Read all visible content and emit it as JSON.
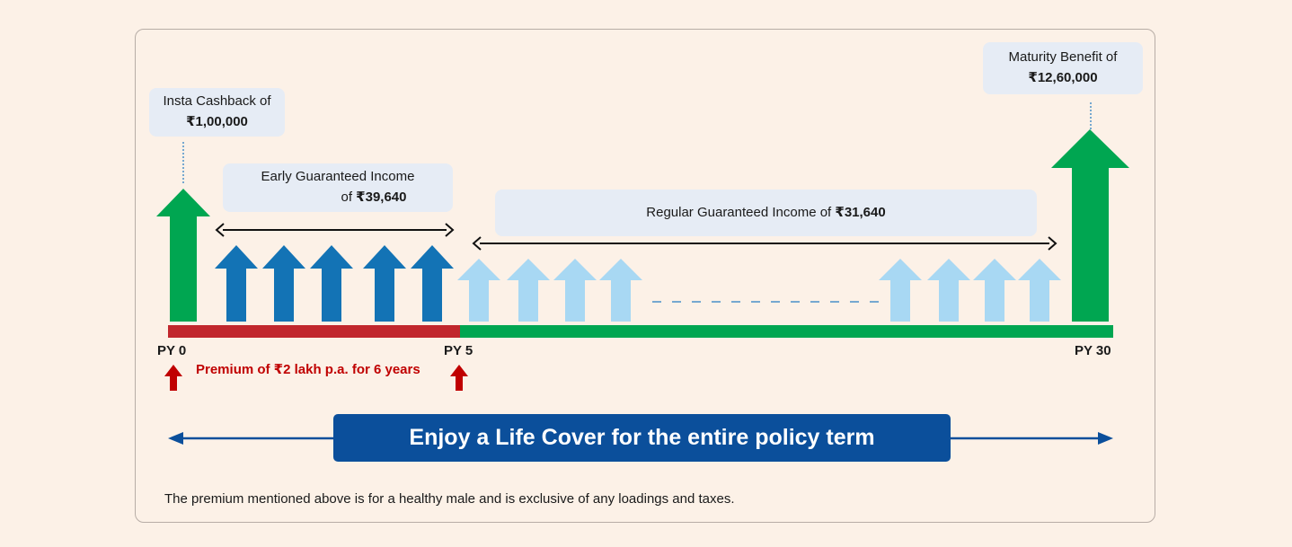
{
  "insta_cashback": {
    "line1": "Insta Cashback of",
    "amount": "₹1,00,000"
  },
  "early_income": {
    "line1": "Early Guaranteed Income",
    "line2_prefix": "of ",
    "amount": "₹39,640"
  },
  "regular_income": {
    "text": "Regular Guaranteed Income of ",
    "amount": "₹31,640"
  },
  "maturity_benefit": {
    "line1": "Maturity Benefit of",
    "amount": "₹12,60,000"
  },
  "timeline": {
    "start": "PY 0",
    "mid": "PY 5",
    "end": "PY 30"
  },
  "premium_note": "Premium of ₹2 lakh p.a. for 6 years",
  "life_cover_banner": "Enjoy a Life Cover for the entire policy term",
  "footnote": "The premium mentioned above is for a healthy male and is exclusive of any loadings and taxes.",
  "colors": {
    "background": "#fcf1e7",
    "green": "#00a651",
    "dark_blue_arrow": "#1373b5",
    "light_blue_arrow": "#a8d8f3",
    "premium_red": "#c00000",
    "timeline_red": "#c1272d",
    "banner_blue": "#0b4f9b",
    "label_box": "#e6ecf5"
  }
}
